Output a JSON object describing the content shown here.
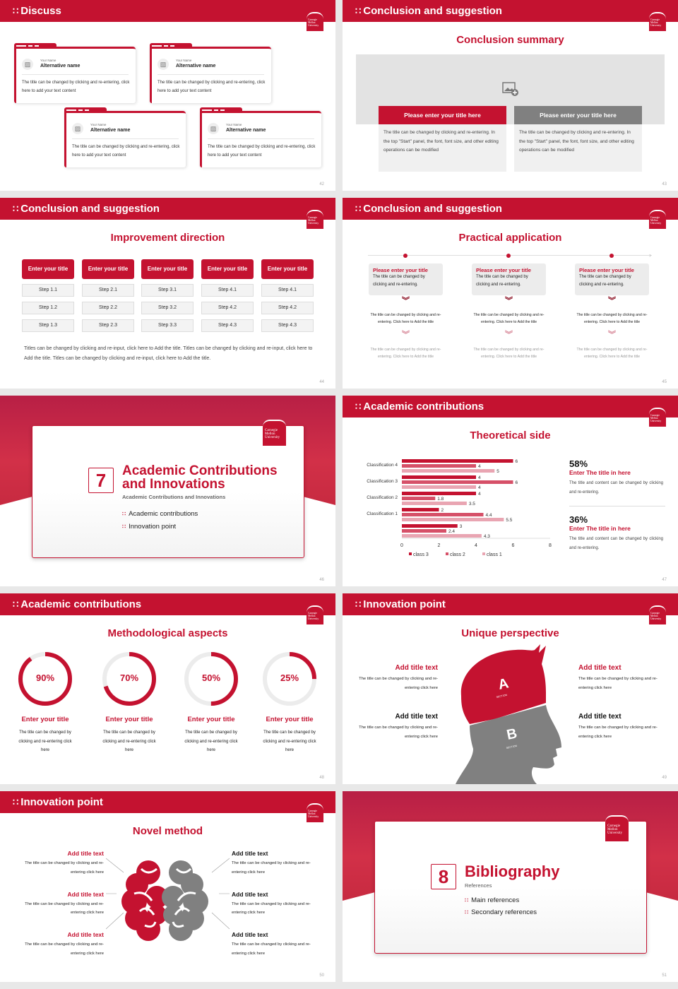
{
  "brand": {
    "color": "#c41230",
    "gray": "#808080",
    "logo_text": "Carnegie Mellon University"
  },
  "s42": {
    "header": "Discuss",
    "page": "42",
    "cards": [
      {
        "label": "Your Name",
        "name": "Alternative name",
        "text": "The title can be changed by clicking and re-entering, click here to add your text content"
      },
      {
        "label": "Your Name",
        "name": "Alternative name",
        "text": "The title can be changed by clicking and re-entering, click here to add your text content"
      },
      {
        "label": "Your Name",
        "name": "Alternative name",
        "text": "The title can be changed by clicking and re-entering, click here to add your text content"
      },
      {
        "label": "Your Name",
        "name": "Alternative name",
        "text": "The title can be changed by clicking and re-entering, click here to add your text content"
      }
    ]
  },
  "s43": {
    "header": "Conclusion and suggestion",
    "title": "Conclusion summary",
    "page": "43",
    "boxes": [
      {
        "title": "Please enter your title here",
        "text": "The title can be changed by clicking and re-entering. In the top \"Start\" panel, the font, font size, and other editing operations can be modified"
      },
      {
        "title": "Please enter your title here",
        "text": "The title can be changed by clicking and re-entering. In the top \"Start\" panel, the font, font size, and other editing operations can be modified"
      }
    ]
  },
  "s44": {
    "header": "Conclusion and suggestion",
    "title": "Improvement direction",
    "page": "44",
    "columns": [
      {
        "title": "Enter your title",
        "steps": [
          "Step 1.1",
          "Step 1.2",
          "Step 1.3"
        ]
      },
      {
        "title": "Enter your title",
        "steps": [
          "Step 2.1",
          "Step 2.2",
          "Step 2.3"
        ]
      },
      {
        "title": "Enter your title",
        "steps": [
          "Step 3.1",
          "Step 3.2",
          "Step 3.3"
        ]
      },
      {
        "title": "Enter your title",
        "steps": [
          "Step 4.1",
          "Step 4.2",
          "Step 4.3"
        ]
      },
      {
        "title": "Enter your title",
        "steps": [
          "Step 4.1",
          "Step 4.2",
          "Step 4.3"
        ]
      }
    ],
    "text": "Titles can be changed by clicking and re-input, click here to Add the title. Titles can be changed by clicking and re-input, click here to Add the title. Titles can be changed by clicking and re-input, click here to Add the title."
  },
  "s45": {
    "header": "Conclusion and suggestion",
    "title": "Practical application",
    "page": "45",
    "items": [
      {
        "title": "Please enter your title",
        "text": "The title can be changed by clicking and re-entering.",
        "sub1": "The title can be changed by clicking and re-entering. Click here to Add the title",
        "sub2": "The title can be changed by clicking and re-entering. Click here to Add the title"
      },
      {
        "title": "Please enter your title",
        "text": "The title can be changed by clicking and re-entering.",
        "sub1": "The title can be changed by clicking and re-entering. Click here to Add the title",
        "sub2": "The title can be changed by clicking and re-entering. Click here to Add the title"
      },
      {
        "title": "Please enter your title",
        "text": "The title can be changed by clicking and re-entering.",
        "sub1": "The title can be changed by clicking and re-entering. Click here to Add the title",
        "sub2": "The title can be changed by clicking and re-entering. Click here to Add the title"
      }
    ]
  },
  "s46": {
    "number": "7",
    "title": "Academic Contributions and Innovations",
    "subtitle": "Academic Contributions and Innovations",
    "items": [
      "Academic contributions",
      "Innovation point"
    ],
    "page": "46"
  },
  "s47": {
    "header": "Academic contributions",
    "title": "Theoretical side",
    "page": "47",
    "stats": [
      {
        "value": "58%",
        "title": "Enter The title in here",
        "text": "The title and content can be changed by clicking and re-entering."
      },
      {
        "value": "36%",
        "title": "Enter The title in here",
        "text": "The title and content can be changed by clicking and re-entering."
      }
    ]
  },
  "chart_data": {
    "type": "bar",
    "orientation": "horizontal",
    "categories": [
      "Classification 4",
      "Classification 3",
      "Classification 2",
      "Classification 1",
      ""
    ],
    "series": [
      {
        "name": "class 3",
        "color": "#c41230",
        "values": [
          6,
          4,
          4,
          2,
          3
        ]
      },
      {
        "name": "class 2",
        "color": "#d65068",
        "values": [
          4,
          6,
          1.8,
          4.4,
          2.4
        ]
      },
      {
        "name": "class 1",
        "color": "#e9a5b2",
        "values": [
          5,
          4,
          3.5,
          5.5,
          4.3
        ]
      }
    ],
    "xlim": [
      0,
      8
    ],
    "xticks": [
      "0",
      "2",
      "4",
      "6",
      "8"
    ],
    "grid": false,
    "legend": "bottom",
    "data_labels": true
  },
  "s48": {
    "header": "Academic contributions",
    "title": "Methodological aspects",
    "page": "48",
    "rings": [
      {
        "value": 90,
        "label": "90%",
        "title": "Enter your title",
        "text": "The title can be changed by clicking and re-entering click here"
      },
      {
        "value": 70,
        "label": "70%",
        "title": "Enter your title",
        "text": "The title can be changed by clicking and re-entering click here"
      },
      {
        "value": 50,
        "label": "50%",
        "title": "Enter your title",
        "text": "The title can be changed by clicking and re-entering click here"
      },
      {
        "value": 25,
        "label": "25%",
        "title": "Enter your title",
        "text": "The title can be changed by clicking and re-entering click here"
      }
    ]
  },
  "s49": {
    "header": "Innovation point",
    "title": "Unique perspective",
    "page": "49",
    "section_a": "A",
    "section_b": "B",
    "section_word": "SECTION",
    "items": [
      {
        "title": "Add title text",
        "text": "The title can be changed by clicking and re-entering click here"
      },
      {
        "title": "Add title text",
        "text": "The title can be changed by clicking and re-entering click here"
      },
      {
        "title": "Add title text",
        "text": "The title can be changed by clicking and re-entering click here"
      },
      {
        "title": "Add title text",
        "text": "The title can be changed by clicking and re-entering click here"
      }
    ]
  },
  "s50": {
    "header": "Innovation point",
    "title": "Novel method",
    "page": "50",
    "items": [
      {
        "title": "Add title text",
        "text": "The title can be changed by clicking and re-entering click here"
      },
      {
        "title": "Add title text",
        "text": "The title can be changed by clicking and re-entering click here"
      },
      {
        "title": "Add title text",
        "text": "The title can be changed by clicking and re-entering click here"
      },
      {
        "title": "Add title text",
        "text": "The title can be changed by clicking and re-entering click here"
      },
      {
        "title": "Add title text",
        "text": "The title can be changed by clicking and re-entering click here"
      },
      {
        "title": "Add title text",
        "text": "The title can be changed by clicking and re-entering click here"
      }
    ]
  },
  "s51": {
    "number": "8",
    "title": "Bibliography",
    "subtitle": "References",
    "items": [
      "Main references",
      "Secondary references"
    ],
    "page": "51"
  }
}
